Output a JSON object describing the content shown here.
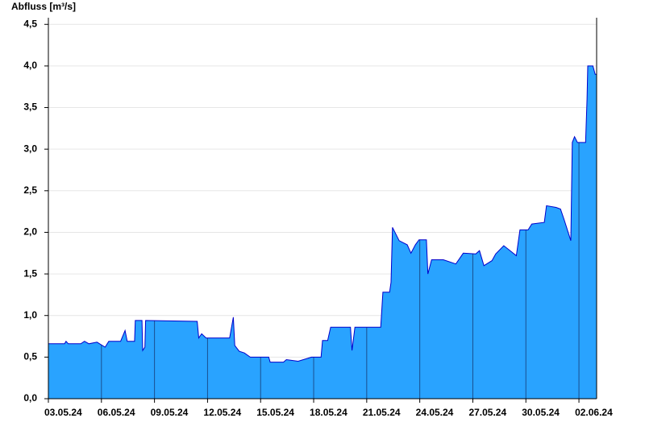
{
  "chart_data": {
    "type": "area",
    "y_label": "Abfluss [m³/s]",
    "color": "#29a3ff",
    "line_color": "#0000cc",
    "grid": true,
    "xlim": [
      "2024-05-03T00:00",
      "2024-06-03T00:00"
    ],
    "xticks": [
      {
        "value": "2024-05-03T00:00",
        "label": "03.05.24"
      },
      {
        "value": "2024-05-06T00:00",
        "label": "06.05.24"
      },
      {
        "value": "2024-05-09T00:00",
        "label": "09.05.24"
      },
      {
        "value": "2024-05-12T00:00",
        "label": "12.05.24"
      },
      {
        "value": "2024-05-15T00:00",
        "label": "15.05.24"
      },
      {
        "value": "2024-05-18T00:00",
        "label": "18.05.24"
      },
      {
        "value": "2024-05-21T00:00",
        "label": "21.05.24"
      },
      {
        "value": "2024-05-24T00:00",
        "label": "24.05.24"
      },
      {
        "value": "2024-05-27T00:00",
        "label": "27.05.24"
      },
      {
        "value": "2024-05-30T00:00",
        "label": "30.05.24"
      },
      {
        "value": "2024-06-02T00:00",
        "label": "02.06.24"
      }
    ],
    "ylim": [
      0,
      4.58
    ],
    "yticks": [
      {
        "value": 0,
        "label": "0,0"
      },
      {
        "value": 0.5,
        "label": "0,5"
      },
      {
        "value": 1,
        "label": "1,0"
      },
      {
        "value": 1.5,
        "label": "1,5"
      },
      {
        "value": 2,
        "label": "2,0"
      },
      {
        "value": 2.5,
        "label": "2,5"
      },
      {
        "value": 3,
        "label": "3,0"
      },
      {
        "value": 3.5,
        "label": "3,5"
      },
      {
        "value": 4,
        "label": "4,0"
      },
      {
        "value": 4.5,
        "label": "4,5"
      }
    ],
    "x": [
      "2024-05-03T00:00",
      "2024-05-03T22:00",
      "2024-05-04T00:00",
      "2024-05-04T03:00",
      "2024-05-04T20:00",
      "2024-05-05T01:00",
      "2024-05-05T07:00",
      "2024-05-05T18:00",
      "2024-05-06T05:00",
      "2024-05-06T10:00",
      "2024-05-07T02:00",
      "2024-05-07T08:00",
      "2024-05-07T11:00",
      "2024-05-07T21:00",
      "2024-05-07T22:00",
      "2024-05-08T07:00",
      "2024-05-08T08:00",
      "2024-05-08T11:00",
      "2024-05-08T12:00",
      "2024-05-11T10:00",
      "2024-05-11T12:00",
      "2024-05-11T16:00",
      "2024-05-11T22:00",
      "2024-05-13T06:00",
      "2024-05-13T11:00",
      "2024-05-13T13:00",
      "2024-05-13T19:00",
      "2024-05-14T02:00",
      "2024-05-14T10:00",
      "2024-05-15T11:00",
      "2024-05-15T13:00",
      "2024-05-16T07:00",
      "2024-05-16T11:00",
      "2024-05-17T03:00",
      "2024-05-17T14:00",
      "2024-05-17T21:00",
      "2024-05-18T10:00",
      "2024-05-18T12:00",
      "2024-05-18T19:00",
      "2024-05-18T23:00",
      "2024-05-20T02:00",
      "2024-05-20T04:00",
      "2024-05-20T08:00",
      "2024-05-21T19:00",
      "2024-05-21T22:00",
      "2024-05-22T07:00",
      "2024-05-22T09:00",
      "2024-05-22T11:00",
      "2024-05-22T20:00",
      "2024-05-23T07:00",
      "2024-05-23T12:00",
      "2024-05-23T18:00",
      "2024-05-23T23:00",
      "2024-05-24T09:00",
      "2024-05-24T11:00",
      "2024-05-24T16:00",
      "2024-05-25T08:00",
      "2024-05-26T01:00",
      "2024-05-26T11:00",
      "2024-05-27T04:00",
      "2024-05-27T09:00",
      "2024-05-27T15:00",
      "2024-05-28T02:00",
      "2024-05-28T07:00",
      "2024-05-28T18:00",
      "2024-05-29T11:00",
      "2024-05-29T16:00",
      "2024-05-30T03:00",
      "2024-05-30T08:00",
      "2024-05-31T01:00",
      "2024-05-31T04:00",
      "2024-05-31T17:00",
      "2024-05-31T23:00",
      "2024-06-01T04:00",
      "2024-06-01T13:00",
      "2024-06-01T15:00",
      "2024-06-01T18:00",
      "2024-06-01T22:00",
      "2024-06-02T09:00",
      "2024-06-02T11:00",
      "2024-06-02T12:00",
      "2024-06-02T19:00",
      "2024-06-02T22:00",
      "2024-06-03T00:00"
    ],
    "values": [
      0.66,
      0.66,
      0.69,
      0.66,
      0.66,
      0.69,
      0.66,
      0.68,
      0.62,
      0.69,
      0.69,
      0.82,
      0.69,
      0.69,
      0.94,
      0.94,
      0.58,
      0.62,
      0.94,
      0.93,
      0.73,
      0.78,
      0.73,
      0.73,
      0.98,
      0.64,
      0.57,
      0.55,
      0.5,
      0.5,
      0.44,
      0.44,
      0.47,
      0.45,
      0.48,
      0.5,
      0.5,
      0.7,
      0.7,
      0.86,
      0.86,
      0.58,
      0.86,
      0.86,
      1.28,
      1.28,
      1.4,
      2.06,
      1.9,
      1.85,
      1.75,
      1.85,
      1.91,
      1.91,
      1.5,
      1.67,
      1.67,
      1.62,
      1.75,
      1.74,
      1.78,
      1.6,
      1.66,
      1.74,
      1.84,
      1.72,
      2.03,
      2.03,
      2.1,
      2.12,
      2.32,
      2.3,
      2.28,
      2.15,
      1.9,
      3.08,
      3.15,
      3.08,
      3.08,
      3.6,
      4.0,
      4.0,
      3.9,
      3.9
    ]
  }
}
